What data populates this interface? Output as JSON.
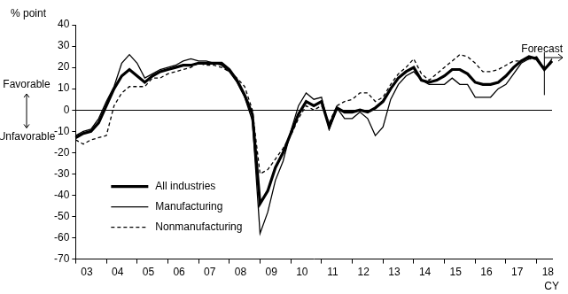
{
  "chart_data": {
    "type": "line",
    "y_label": "% point",
    "x_label": "CY",
    "annotations": {
      "favorable": "Favorable",
      "unfavorable": "Unfavorable",
      "forecast": "Forecast"
    },
    "categories": [
      null,
      "03",
      null,
      null,
      null,
      "04",
      null,
      null,
      null,
      "05",
      null,
      null,
      null,
      "06",
      null,
      null,
      null,
      "07",
      null,
      null,
      null,
      "08",
      null,
      null,
      null,
      "09",
      null,
      null,
      null,
      "10",
      null,
      null,
      null,
      "11",
      null,
      null,
      null,
      "12",
      null,
      null,
      null,
      "13",
      null,
      null,
      null,
      "14",
      null,
      null,
      null,
      "15",
      null,
      null,
      null,
      "16",
      null,
      null,
      null,
      "17",
      null,
      null,
      null,
      "18",
      null
    ],
    "series": [
      {
        "name": "All industries",
        "color": "#000000",
        "line_style": "bold",
        "values": [
          -13,
          -11,
          -10,
          -6,
          2,
          10,
          16,
          19,
          16,
          13,
          16,
          18,
          19,
          20,
          21,
          21,
          22,
          22,
          22,
          22,
          19,
          14,
          7,
          -2,
          -44,
          -38,
          -27,
          -20,
          -11,
          -2,
          4,
          2,
          4,
          -8,
          1,
          -1,
          -1,
          0,
          -1,
          1,
          4,
          10,
          15,
          18,
          20,
          14,
          13,
          14,
          16,
          19,
          19,
          17,
          13,
          12,
          12,
          13,
          16,
          20,
          23,
          25,
          24,
          19,
          23
        ]
      },
      {
        "name": "Manufacturing",
        "color": "#000000",
        "line_style": "solid",
        "values": [
          -12,
          -10,
          -9,
          -4,
          4,
          11,
          22,
          26,
          22,
          15,
          17,
          19,
          20,
          21,
          23,
          24,
          23,
          23,
          22,
          21,
          18,
          13,
          6,
          -5,
          -58,
          -48,
          -33,
          -24,
          -10,
          2,
          8,
          5,
          6,
          -9,
          1,
          -4,
          -4,
          -1,
          -4,
          -12,
          -8,
          5,
          12,
          16,
          18,
          14,
          12,
          12,
          12,
          15,
          12,
          12,
          6,
          6,
          6,
          10,
          12,
          17,
          22,
          24,
          25,
          19,
          24
        ]
      },
      {
        "name": "Nonmanufacturing",
        "color": "#000000",
        "line_style": "dashed",
        "values": [
          -14,
          -16,
          -14,
          -13,
          -12,
          2,
          8,
          11,
          11,
          11,
          15,
          15,
          17,
          18,
          19,
          20,
          22,
          21,
          21,
          20,
          18,
          15,
          11,
          0,
          -30,
          -28,
          -23,
          -18,
          -12,
          -4,
          2,
          0,
          2,
          -6,
          2,
          4,
          5,
          8,
          8,
          4,
          6,
          12,
          17,
          20,
          24,
          17,
          14,
          17,
          20,
          23,
          26,
          25,
          22,
          18,
          18,
          19,
          21,
          23,
          23,
          24,
          24,
          20,
          22
        ]
      }
    ],
    "ylim": [
      -70,
      40
    ],
    "yticks": [
      -70,
      -60,
      -50,
      -40,
      -30,
      -20,
      -10,
      0,
      10,
      20,
      30,
      40
    ],
    "grid": false,
    "legend": "lower left"
  }
}
